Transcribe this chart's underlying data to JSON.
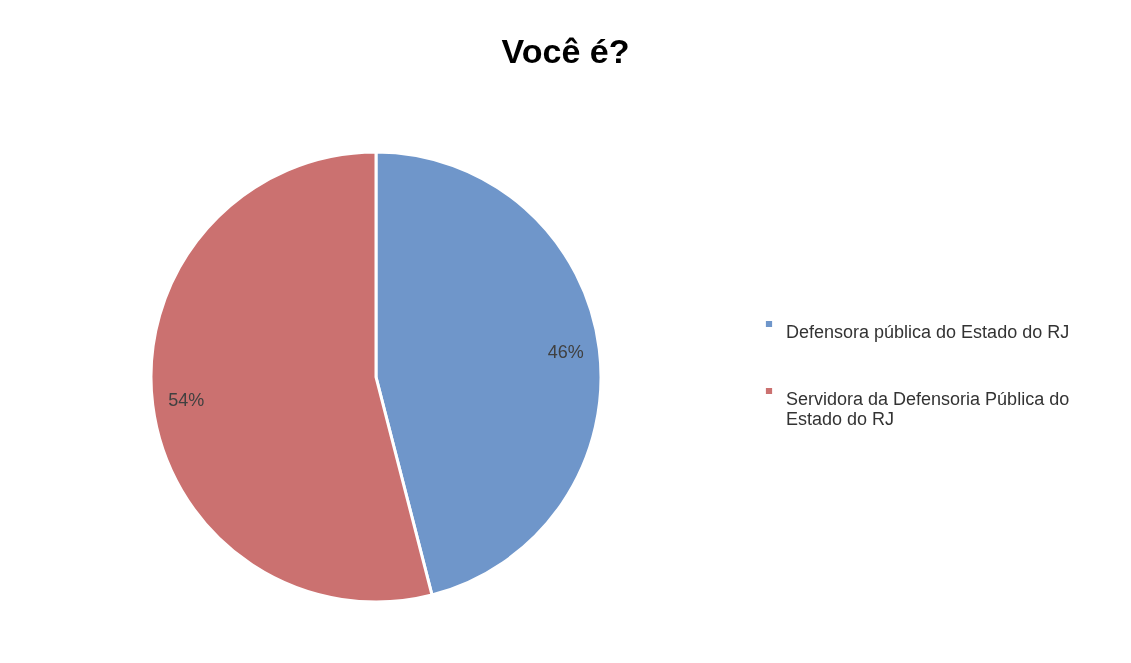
{
  "chart_data": {
    "type": "pie",
    "title": "Você é?",
    "categories": [
      "Defensora pública do Estado do RJ",
      "Servidora da Defensoria Pública do Estado do RJ"
    ],
    "values": [
      46,
      54
    ],
    "colors": [
      "#6f96ca",
      "#cb7170"
    ],
    "value_labels": [
      "46%",
      "54%"
    ],
    "legend": "right"
  }
}
